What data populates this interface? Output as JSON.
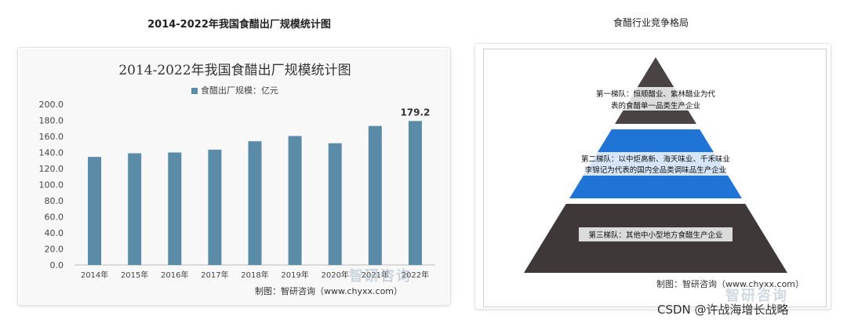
{
  "left_caption": "2014-2022年我国食醋出厂规模统计图",
  "right_caption": "食醋行业竞争格局",
  "chart_data": {
    "type": "bar",
    "title": "2014-2022年我国食醋出厂规模统计图",
    "categories": [
      "2014年",
      "2015年",
      "2016年",
      "2017年",
      "2018年",
      "2019年",
      "2020年",
      "2021年",
      "2022年"
    ],
    "series": [
      {
        "name": "食醋出厂规模：亿元",
        "values": [
          134.5,
          139.0,
          140.0,
          143.5,
          154.0,
          160.5,
          151.5,
          173.0,
          179.2
        ]
      }
    ],
    "ylim": [
      0,
      200
    ],
    "yticks": [
      "0.0",
      "20.0",
      "40.0",
      "60.0",
      "80.0",
      "100.0",
      "120.0",
      "140.0",
      "160.0",
      "180.0",
      "200.0"
    ],
    "data_labels": [
      {
        "category": "2022年",
        "text": "179.2"
      }
    ],
    "xlabel": "",
    "ylabel": "",
    "grid": false,
    "legend_placement": "top",
    "bar_color": "#5a8ca8"
  },
  "left_source": "制图：智研咨询（www.chyxx.com）",
  "left_watermark": "智研咨询",
  "pyramid": {
    "tiers": [
      {
        "label_line1": "第一梯队：恒顺醋业、紫林醋业为代",
        "label_line2": "表的食醋单一品类生产企业",
        "color": "#4a4343"
      },
      {
        "label_line1": "第二梯队：以中炬高新、海天味业、千禾味业",
        "label_line2": "李锦记为代表的国内全品类调味品生产企业",
        "color": "#1f74d6"
      },
      {
        "label_line1": "第三梯队：其他中小型地方食醋生产企业",
        "label_line2": "",
        "color": "#3f3838"
      }
    ]
  },
  "right_source": "制图：智研咨询（www.chyxx.com）",
  "right_watermark": "智研咨询",
  "credit": "CSDN @许战海增长战略"
}
